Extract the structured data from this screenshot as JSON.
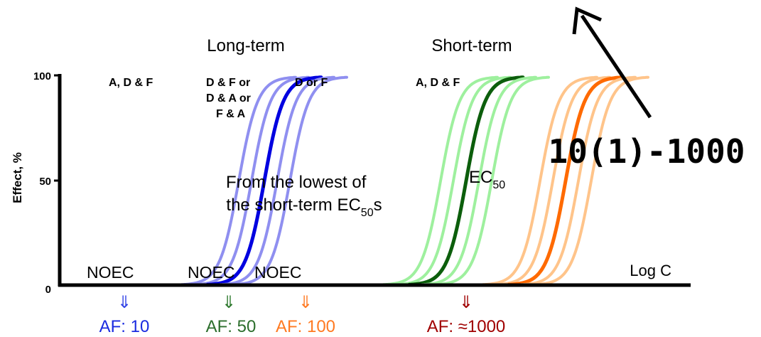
{
  "chart_data": {
    "type": "line",
    "ylabel": "Effect, %",
    "xlabel": "Log C",
    "ylim": [
      0,
      100
    ],
    "yticks": [
      "0",
      "50",
      "100"
    ],
    "grid": false,
    "groups": [
      {
        "header": "Long-term",
        "species_label": "A, D & F",
        "noec_label": "NOEC",
        "af_label": "AF: 10",
        "color": "#0000e0",
        "light_color": "#8f8ff0",
        "arrow": "⇓",
        "centers": [
          0.63,
          0.675,
          0.72,
          0.765,
          0.81
        ]
      },
      {
        "header": "",
        "species_label": "D & F or\nD & A or\nF & A",
        "noec_label": "NOEC",
        "af_label": "AF: 50",
        "color": "#0c5e0c",
        "light_color": "#9ef09e",
        "arrow": "⇓",
        "centers": [
          1.34,
          1.385,
          1.43,
          1.475,
          1.52
        ]
      },
      {
        "header": "",
        "species_label": "D or F",
        "noec_label": "NOEC",
        "af_label": "AF: 100",
        "color": "#ff6a00",
        "light_color": "#ffc48a",
        "arrow": "⇓",
        "centers": [
          1.69,
          1.735,
          1.78,
          1.825,
          1.87
        ]
      },
      {
        "header": "Short-term",
        "species_label": "A, D & F",
        "noec_label": "",
        "af_label": "AF: ≈1000",
        "color": "#a00000",
        "light_color": "#a00000",
        "arrow": "⇓",
        "centers": [
          2.78
        ]
      }
    ],
    "annotations": {
      "lowest_ec50": "From the lowest of the short-term EC50s",
      "ec50": "EC50"
    },
    "factor_range": "10(1)-1000"
  }
}
